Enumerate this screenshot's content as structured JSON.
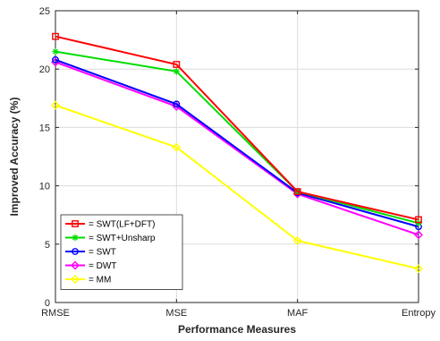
{
  "chart_data": {
    "type": "line",
    "categories": [
      "RMSE",
      "MSE",
      "MAF",
      "Entropy"
    ],
    "xlabel": "Performance Measures",
    "ylabel": "Improved Accuracy (%)",
    "ylim": [
      0,
      25
    ],
    "yticks": [
      0,
      5,
      10,
      15,
      20,
      25
    ],
    "grid": true,
    "legend_position": "lower-left",
    "series": [
      {
        "name": "= SWT(LF+DFT)",
        "color": "#ff0000",
        "marker": "square",
        "values": [
          22.8,
          20.4,
          9.5,
          7.1
        ]
      },
      {
        "name": "= SWT+Unsharp",
        "color": "#00dd00",
        "marker": "star",
        "values": [
          21.5,
          19.8,
          9.5,
          6.8
        ]
      },
      {
        "name": "= SWT",
        "color": "#0000ff",
        "marker": "circle",
        "values": [
          20.8,
          17.0,
          9.4,
          6.5
        ]
      },
      {
        "name": "= DWT",
        "color": "#ff00ff",
        "marker": "diamond",
        "values": [
          20.6,
          16.8,
          9.3,
          5.8
        ]
      },
      {
        "name": "= MM",
        "color": "#ffff00",
        "marker": "diamond",
        "values": [
          16.9,
          13.3,
          5.3,
          2.9
        ]
      }
    ]
  }
}
